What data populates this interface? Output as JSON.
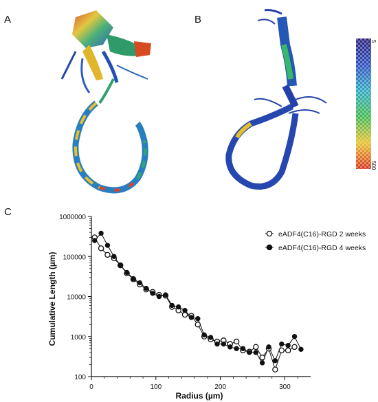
{
  "panels": {
    "a": "A",
    "b": "B",
    "c": "C"
  },
  "colorbar": {
    "top_label": "5",
    "bottom_label": "500"
  },
  "chart_data": {
    "type": "line",
    "xlabel": "Radius (µm)",
    "ylabel": "Cumulative Length (µm)",
    "xlim": [
      0,
      340
    ],
    "ylim": [
      100,
      1000000
    ],
    "yscale": "log",
    "xticks": [
      0,
      100,
      200,
      300
    ],
    "yticks": [
      100,
      1000,
      10000,
      100000,
      1000000
    ],
    "ytick_labels": [
      "100",
      "1000",
      "10000",
      "100000",
      "1000000"
    ],
    "legend_position": "top-right",
    "series": [
      {
        "name": "eADF4(C16)-RGD 2 weeks",
        "marker": "open-circle",
        "x": [
          5,
          15,
          25,
          35,
          45,
          55,
          65,
          75,
          85,
          95,
          105,
          115,
          125,
          135,
          145,
          155,
          165,
          175,
          185,
          195,
          205,
          215,
          225,
          235,
          245,
          255,
          265,
          275,
          285,
          295,
          305,
          315
        ],
        "y": [
          300000,
          160000,
          110000,
          90000,
          60000,
          38000,
          27000,
          20000,
          15000,
          13000,
          11000,
          10500,
          5500,
          4500,
          3500,
          3300,
          2000,
          1000,
          850,
          750,
          800,
          650,
          750,
          450,
          420,
          550,
          300,
          500,
          150,
          450,
          450,
          550
        ]
      },
      {
        "name": "eADF4(C16)-RGD 4 weeks",
        "marker": "filled-circle",
        "x": [
          5,
          15,
          25,
          35,
          45,
          55,
          65,
          75,
          85,
          95,
          105,
          115,
          125,
          135,
          145,
          155,
          165,
          175,
          185,
          195,
          205,
          215,
          225,
          235,
          245,
          255,
          265,
          275,
          285,
          295,
          305,
          315,
          325
        ],
        "y": [
          250000,
          380000,
          190000,
          100000,
          60000,
          40000,
          28000,
          22000,
          16000,
          12000,
          10000,
          11000,
          6000,
          5500,
          4500,
          3000,
          2800,
          1100,
          950,
          650,
          650,
          550,
          500,
          500,
          400,
          400,
          220,
          550,
          250,
          650,
          600,
          1000,
          480
        ]
      }
    ]
  }
}
